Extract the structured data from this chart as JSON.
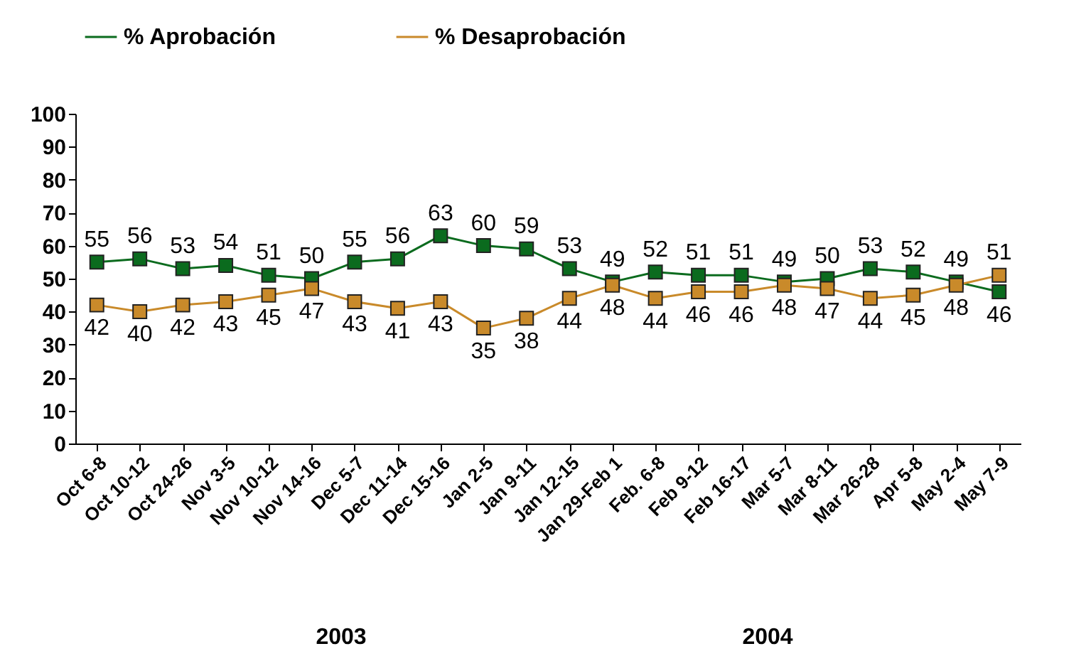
{
  "chart_data": {
    "type": "line",
    "categories": [
      "Oct 6-8",
      "Oct 10-12",
      "Oct 24-26",
      "Nov 3-5",
      "Nov 10-12",
      "Nov 14-16",
      "Dec 5-7",
      "Dec 11-14",
      "Dec 15-16",
      "Jan 2-5",
      "Jan 9-11",
      "Jan 12-15",
      "Jan 29-Feb 1",
      "Feb. 6-8",
      "Feb 9-12",
      "Feb 16-17",
      "Mar 5-7",
      "Mar 8-11",
      "Mar 26-28",
      "Apr 5-8",
      "May 2-4",
      "May 7-9"
    ],
    "series": [
      {
        "name": "% Aprobación",
        "color": "#0b6b1e",
        "values": [
          55,
          56,
          53,
          54,
          51,
          50,
          55,
          56,
          63,
          60,
          59,
          53,
          49,
          52,
          51,
          51,
          49,
          50,
          53,
          52,
          49,
          46
        ]
      },
      {
        "name": "% Desaprobación",
        "color": "#c98a2a",
        "values": [
          42,
          40,
          42,
          43,
          45,
          47,
          43,
          41,
          43,
          35,
          38,
          44,
          48,
          44,
          46,
          46,
          48,
          47,
          44,
          45,
          48,
          51
        ]
      }
    ],
    "ylim": [
      0,
      100
    ],
    "yticks": [
      0,
      10,
      20,
      30,
      40,
      50,
      60,
      70,
      80,
      90,
      100
    ],
    "grid": false,
    "legend": "top",
    "marker": "square",
    "line_style": "solid",
    "data_labels": true,
    "annotations": [
      "2003",
      "2004"
    ]
  }
}
